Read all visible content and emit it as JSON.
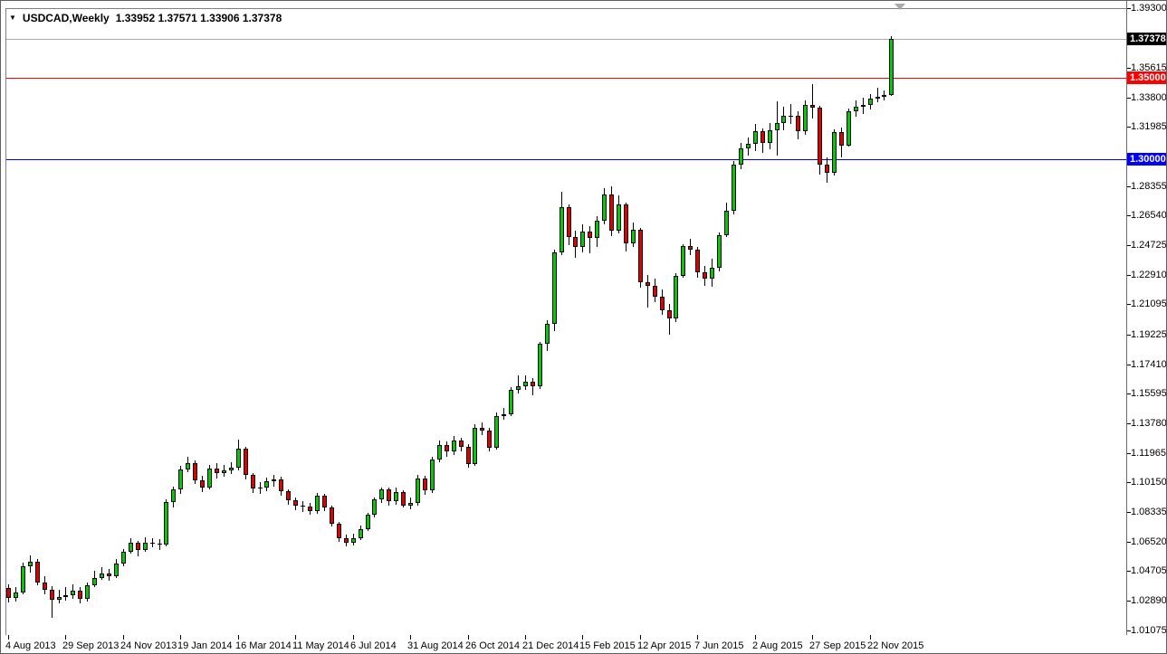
{
  "window": {
    "title_symbol": "USDCAD,Weekly",
    "title_quotes": "1.33952 1.37571 1.33906 1.37378"
  },
  "colors": {
    "up_body": "#00CC00",
    "down_body": "#E00000",
    "candle_outline": "#000000",
    "wick": "#000000",
    "resistance_line": "#FF0000",
    "support_line": "#0000FF",
    "current_price_line": "#ABABAB",
    "current_tag_bg": "#000000",
    "tag_text": "#FFFFFF",
    "background": "#FFFFFF"
  },
  "chart_data": {
    "type": "candlestick",
    "title": "USDCAD,Weekly",
    "timeframe_weeks_per_bar": 1,
    "grid": false,
    "ylim": [
      1.0052,
      1.393
    ],
    "y_tick_labels": [
      "1.39300",
      "1.35615",
      "1.33800",
      "1.31985",
      "1.28355",
      "1.26540",
      "1.24725",
      "1.22910",
      "1.21095",
      "1.19225",
      "1.17410",
      "1.15595",
      "1.13780",
      "1.11965",
      "1.10150",
      "1.08335",
      "1.06520",
      "1.04705",
      "1.02890",
      "1.01075"
    ],
    "x_tick_labels": [
      "4 Aug 2013",
      "29 Sep 2013",
      "24 Nov 2013",
      "19 Jan 2014",
      "16 Mar 2014",
      "11 May 2014",
      "6 Jul 2014",
      "31 Aug 2014",
      "26 Oct 2014",
      "21 Dec 2014",
      "15 Feb 2015",
      "12 Apr 2015",
      "7 Jun 2015",
      "2 Aug 2015",
      "27 Sep 2015",
      "22 Nov 2015"
    ],
    "weeks_per_x_label": 8,
    "horizontal_lines": [
      {
        "price": 1.35,
        "label": "1.35000",
        "color": "#FF0000"
      },
      {
        "price": 1.3,
        "label": "1.30000",
        "color": "#0000FF"
      }
    ],
    "current_price": {
      "price": 1.37378,
      "label": "1.37378"
    },
    "last_bar": {
      "open": 1.33952,
      "high": 1.37571,
      "low": 1.33906,
      "close": 1.37378
    },
    "ohlc": [
      [
        1.0365,
        1.039,
        1.028,
        1.0305
      ],
      [
        1.0305,
        1.0375,
        1.0285,
        1.034
      ],
      [
        1.034,
        1.052,
        1.033,
        1.05
      ],
      [
        1.05,
        1.0568,
        1.046,
        1.053
      ],
      [
        1.053,
        1.0545,
        1.0385,
        1.04
      ],
      [
        1.04,
        1.044,
        1.033,
        1.0355
      ],
      [
        1.0355,
        1.038,
        1.0182,
        1.0295
      ],
      [
        1.0295,
        1.0355,
        1.0275,
        1.031
      ],
      [
        1.031,
        1.0375,
        1.029,
        1.032
      ],
      [
        1.032,
        1.039,
        1.03,
        1.035
      ],
      [
        1.035,
        1.037,
        1.0275,
        1.03
      ],
      [
        1.03,
        1.04,
        1.0285,
        1.0385
      ],
      [
        1.0385,
        1.047,
        1.037,
        1.043
      ],
      [
        1.043,
        1.0497,
        1.0415,
        1.0455
      ],
      [
        1.0455,
        1.0485,
        1.041,
        1.044
      ],
      [
        1.044,
        1.0545,
        1.043,
        1.0515
      ],
      [
        1.0515,
        1.0605,
        1.05,
        1.059
      ],
      [
        1.059,
        1.0675,
        1.058,
        1.0645
      ],
      [
        1.0645,
        1.0655,
        1.056,
        1.06
      ],
      [
        1.06,
        1.068,
        1.059,
        1.0645
      ],
      [
        1.0645,
        1.067,
        1.0615,
        1.064
      ],
      [
        1.064,
        1.0665,
        1.06,
        1.0635
      ],
      [
        1.0635,
        1.091,
        1.062,
        1.0895
      ],
      [
        1.0895,
        1.099,
        1.086,
        1.097
      ],
      [
        1.097,
        1.1115,
        1.0945,
        1.1095
      ],
      [
        1.1095,
        1.1175,
        1.108,
        1.1135
      ],
      [
        1.1135,
        1.115,
        1.1005,
        1.103
      ],
      [
        1.103,
        1.1055,
        1.0955,
        1.0985
      ],
      [
        1.0985,
        1.112,
        1.097,
        1.11
      ],
      [
        1.11,
        1.1135,
        1.104,
        1.1075
      ],
      [
        1.1075,
        1.1125,
        1.105,
        1.109
      ],
      [
        1.109,
        1.114,
        1.1065,
        1.1105
      ],
      [
        1.1105,
        1.1279,
        1.109,
        1.122
      ],
      [
        1.122,
        1.1235,
        1.1035,
        1.106
      ],
      [
        1.106,
        1.1075,
        1.095,
        1.098
      ],
      [
        1.098,
        1.1015,
        1.0945,
        1.0985
      ],
      [
        1.0985,
        1.1045,
        1.096,
        1.102
      ],
      [
        1.102,
        1.106,
        1.099,
        1.1035
      ],
      [
        1.1035,
        1.105,
        1.0935,
        1.096
      ],
      [
        1.096,
        1.0975,
        1.088,
        1.0905
      ],
      [
        1.0905,
        1.0925,
        1.0845,
        1.087
      ],
      [
        1.087,
        1.09,
        1.0835,
        1.0865
      ],
      [
        1.0865,
        1.089,
        1.0815,
        1.084
      ],
      [
        1.084,
        1.095,
        1.0825,
        1.0935
      ],
      [
        1.0935,
        1.0945,
        1.084,
        1.086
      ],
      [
        1.086,
        1.087,
        1.0745,
        1.076
      ],
      [
        1.076,
        1.0775,
        1.065,
        1.067
      ],
      [
        1.067,
        1.0695,
        1.0621,
        1.0645
      ],
      [
        1.0645,
        1.07,
        1.063,
        1.0675
      ],
      [
        1.0675,
        1.075,
        1.066,
        1.073
      ],
      [
        1.073,
        1.083,
        1.0715,
        1.0815
      ],
      [
        1.0815,
        1.0925,
        1.08,
        1.091
      ],
      [
        1.091,
        1.0985,
        1.089,
        1.097
      ],
      [
        1.097,
        1.0985,
        1.0875,
        1.09
      ],
      [
        1.09,
        1.0985,
        1.088,
        1.0955
      ],
      [
        1.0955,
        1.0965,
        1.086,
        1.0875
      ],
      [
        1.0875,
        1.092,
        1.085,
        1.089
      ],
      [
        1.089,
        1.106,
        1.0875,
        1.104
      ],
      [
        1.104,
        1.1055,
        1.094,
        1.0965
      ],
      [
        1.0965,
        1.117,
        1.095,
        1.1155
      ],
      [
        1.1155,
        1.127,
        1.114,
        1.1245
      ],
      [
        1.1245,
        1.1265,
        1.1175,
        1.1205
      ],
      [
        1.1205,
        1.13,
        1.1185,
        1.1275
      ],
      [
        1.1275,
        1.129,
        1.1205,
        1.1235
      ],
      [
        1.1235,
        1.125,
        1.1105,
        1.113
      ],
      [
        1.113,
        1.1375,
        1.1115,
        1.135
      ],
      [
        1.135,
        1.1385,
        1.1305,
        1.1335
      ],
      [
        1.1335,
        1.135,
        1.1205,
        1.123
      ],
      [
        1.123,
        1.1445,
        1.1215,
        1.1425
      ],
      [
        1.1425,
        1.1475,
        1.14,
        1.1435
      ],
      [
        1.1435,
        1.16,
        1.142,
        1.1585
      ],
      [
        1.1585,
        1.1675,
        1.156,
        1.1605
      ],
      [
        1.1605,
        1.167,
        1.1585,
        1.1635
      ],
      [
        1.1635,
        1.1655,
        1.155,
        1.1605
      ],
      [
        1.1605,
        1.188,
        1.159,
        1.1865
      ],
      [
        1.1865,
        1.201,
        1.182,
        1.199
      ],
      [
        1.199,
        1.2445,
        1.1945,
        1.243
      ],
      [
        1.243,
        1.28,
        1.241,
        1.2705
      ],
      [
        1.2705,
        1.272,
        1.247,
        1.2525
      ],
      [
        1.2525,
        1.256,
        1.2395,
        1.246
      ],
      [
        1.246,
        1.26,
        1.243,
        1.2555
      ],
      [
        1.2555,
        1.259,
        1.2425,
        1.2515
      ],
      [
        1.2515,
        1.265,
        1.246,
        1.262
      ],
      [
        1.262,
        1.282,
        1.26,
        1.2785
      ],
      [
        1.2785,
        1.2835,
        1.253,
        1.256
      ],
      [
        1.256,
        1.278,
        1.2545,
        1.2725
      ],
      [
        1.2725,
        1.2735,
        1.2435,
        1.2485
      ],
      [
        1.2485,
        1.261,
        1.246,
        1.2565
      ],
      [
        1.2565,
        1.258,
        1.221,
        1.2245
      ],
      [
        1.2245,
        1.229,
        1.209,
        1.2225
      ],
      [
        1.2225,
        1.2265,
        1.212,
        1.2155
      ],
      [
        1.2155,
        1.22,
        1.2045,
        1.2075
      ],
      [
        1.2075,
        1.211,
        1.192,
        1.2025
      ],
      [
        1.2025,
        1.23,
        1.2,
        1.2285
      ],
      [
        1.2285,
        1.248,
        1.227,
        1.2465
      ],
      [
        1.2465,
        1.251,
        1.241,
        1.2445
      ],
      [
        1.2445,
        1.246,
        1.2275,
        1.2305
      ],
      [
        1.2305,
        1.2345,
        1.2225,
        1.2265
      ],
      [
        1.2265,
        1.239,
        1.2215,
        1.2335
      ],
      [
        1.2335,
        1.255,
        1.231,
        1.2535
      ],
      [
        1.2535,
        1.2735,
        1.252,
        1.2685
      ],
      [
        1.2685,
        1.299,
        1.266,
        1.2965
      ],
      [
        1.2965,
        1.31,
        1.294,
        1.3065
      ],
      [
        1.3065,
        1.3135,
        1.302,
        1.3095
      ],
      [
        1.3095,
        1.3215,
        1.305,
        1.3175
      ],
      [
        1.3175,
        1.319,
        1.304,
        1.31
      ],
      [
        1.31,
        1.322,
        1.306,
        1.318
      ],
      [
        1.318,
        1.3355,
        1.302,
        1.3225
      ],
      [
        1.3225,
        1.332,
        1.318,
        1.3265
      ],
      [
        1.3265,
        1.334,
        1.3215,
        1.3265
      ],
      [
        1.3265,
        1.3295,
        1.312,
        1.3175
      ],
      [
        1.3175,
        1.336,
        1.315,
        1.3335
      ],
      [
        1.3335,
        1.346,
        1.325,
        1.3315
      ],
      [
        1.3315,
        1.333,
        1.2905,
        1.2965
      ],
      [
        1.2965,
        1.301,
        1.2855,
        1.2915
      ],
      [
        1.2915,
        1.3185,
        1.29,
        1.3165
      ],
      [
        1.3165,
        1.3195,
        1.301,
        1.3085
      ],
      [
        1.3085,
        1.331,
        1.3075,
        1.3295
      ],
      [
        1.3295,
        1.336,
        1.326,
        1.3325
      ],
      [
        1.3325,
        1.338,
        1.328,
        1.3335
      ],
      [
        1.3335,
        1.34,
        1.3305,
        1.3375
      ],
      [
        1.3375,
        1.344,
        1.335,
        1.3385
      ],
      [
        1.3385,
        1.342,
        1.336,
        1.3395
      ],
      [
        1.33952,
        1.37571,
        1.33906,
        1.37378
      ]
    ]
  }
}
